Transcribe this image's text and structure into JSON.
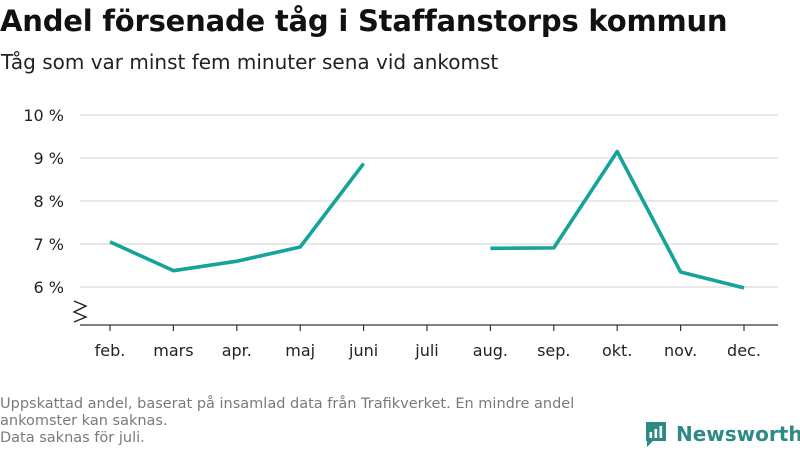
{
  "header": {
    "title": "Andel försenade tåg i Staffanstorps kommun",
    "subtitle": "Tåg som var minst fem minuter sena vid ankomst"
  },
  "chart_data": {
    "type": "line",
    "categories": [
      "feb.",
      "mars",
      "apr.",
      "maj",
      "juni",
      "juli",
      "aug.",
      "sep.",
      "okt.",
      "nov.",
      "dec."
    ],
    "series": [
      {
        "values": [
          7.05,
          6.38,
          6.6,
          6.93,
          8.87,
          null,
          6.9,
          6.91,
          9.15,
          6.35,
          5.98
        ]
      }
    ],
    "y_ticks": [
      6,
      7,
      8,
      9,
      10
    ],
    "y_tick_labels": [
      "6 %",
      "7 %",
      "8 %",
      "9 %",
      "10 %"
    ],
    "ylim": [
      5,
      10
    ],
    "y_axis_break": true,
    "grid": true,
    "line_color": "#15a39a"
  },
  "footer": {
    "note_lines": [
      "Uppskattad andel, baserat på insamlad data från Trafikverket. En mindre andel ankomster kan saknas.",
      "Data saknas för juli."
    ],
    "brand_name": "Newsworthy",
    "brand_icon": "newsworthy-logo-icon",
    "brand_color": "#2e8a84"
  }
}
